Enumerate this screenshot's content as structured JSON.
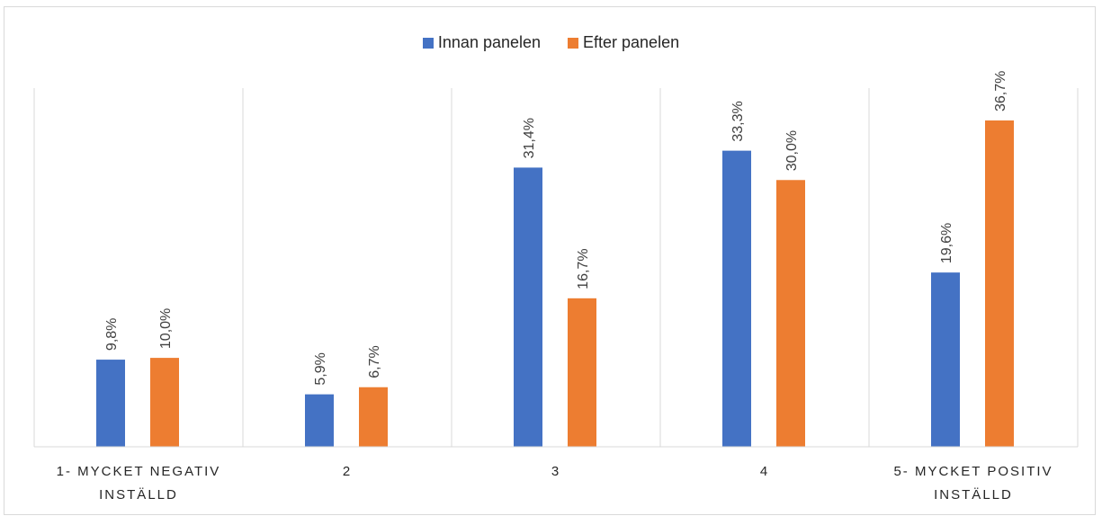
{
  "chart_data": {
    "type": "bar",
    "title": "",
    "xlabel": "",
    "ylabel": "",
    "ylim": [
      0,
      40
    ],
    "grid": "vertical category separators",
    "legend_position": "top",
    "categories": [
      [
        "1- MYCKET NEGATIV",
        "INSTÄLLD"
      ],
      [
        "2"
      ],
      [
        "3"
      ],
      [
        "4"
      ],
      [
        "5- MYCKET POSITIV",
        "INSTÄLLD"
      ]
    ],
    "series": [
      {
        "name": "Innan panelen",
        "color": "#4472c4",
        "values": [
          9.8,
          5.9,
          31.4,
          33.3,
          19.6
        ],
        "labels": [
          "9,8%",
          "5,9%",
          "31,4%",
          "33,3%",
          "19,6%"
        ]
      },
      {
        "name": "Efter panelen",
        "color": "#ed7d31",
        "values": [
          10.0,
          6.7,
          16.7,
          30.0,
          36.7
        ],
        "labels": [
          "10,0%",
          "6,7%",
          "16,7%",
          "30,0%",
          "36,7%"
        ]
      }
    ]
  }
}
